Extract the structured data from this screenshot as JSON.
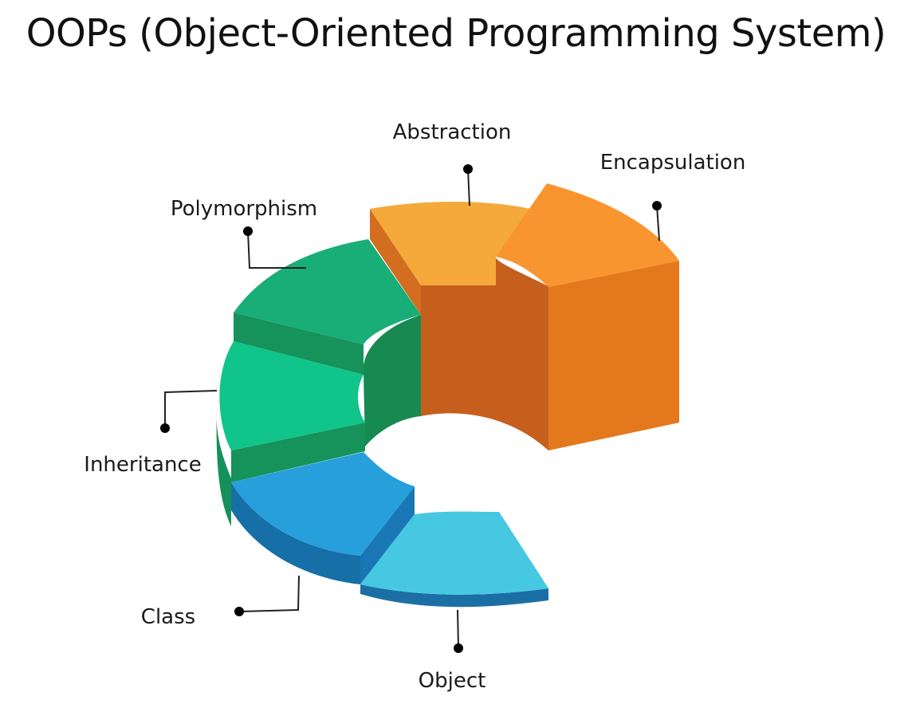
{
  "title": "OOPs (Object-Oriented Programming System)",
  "segments": [
    {
      "id": "abstraction",
      "label": "Abstraction",
      "color": "#f4a93a"
    },
    {
      "id": "encapsulation",
      "label": "Encapsulation",
      "color": "#f9952f"
    },
    {
      "id": "polymorphism",
      "label": "Polymorphism",
      "color": "#19ad78"
    },
    {
      "id": "inheritance",
      "label": "Inheritance",
      "color": "#10c48a"
    },
    {
      "id": "class",
      "label": "Class",
      "color": "#279fdb"
    },
    {
      "id": "object",
      "label": "Object",
      "color": "#46c8e3"
    }
  ]
}
